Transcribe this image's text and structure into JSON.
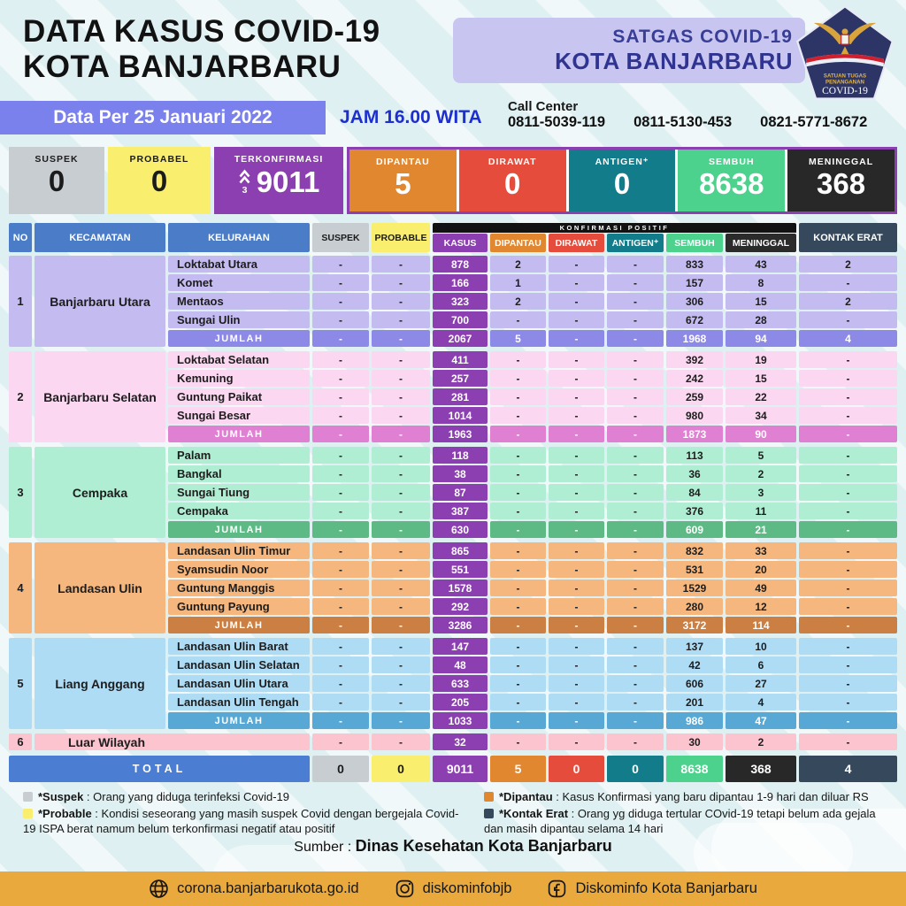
{
  "page": {
    "title_line1": "DATA KASUS COVID-19",
    "title_line2": "KOTA BANJARBARU"
  },
  "satgas": {
    "line1": "SATGAS COVID-19",
    "line2": "KOTA BANJARBARU",
    "badge_line1": "SATUAN TUGAS",
    "badge_line2": "PENANGANAN",
    "badge_line3": "COVID-19"
  },
  "info_bar": {
    "date": "Data Per 25 Januari 2022",
    "time": "JAM 16.00 WITA",
    "call_center_label": "Call Center",
    "phones": [
      "0811-5039-119",
      "0811-5130-453",
      "0821-5771-8672"
    ]
  },
  "summary_cards": {
    "standalone": [
      {
        "label": "SUSPEK",
        "value": "0",
        "bg": "#c8cdd1",
        "fg": "#1b1b1b"
      },
      {
        "label": "PROBABEL",
        "value": "0",
        "bg": "#f9ee6e",
        "fg": "#1b1b1b"
      },
      {
        "label": "TERKONFIRMASI",
        "value": "9011",
        "delta": "3",
        "bg": "#8c3fb0",
        "fg": "#ffffff"
      }
    ],
    "grouped": [
      {
        "label": "DIPANTAU",
        "value": "5",
        "bg": "#e0872f",
        "fg": "#ffffff"
      },
      {
        "label": "DIRAWAT",
        "value": "0",
        "bg": "#e64c3c",
        "fg": "#ffffff"
      },
      {
        "label": "ANTIGEN⁺",
        "value": "0",
        "bg": "#137c8b",
        "fg": "#ffffff"
      },
      {
        "label": "SEMBUH",
        "value": "8638",
        "bg": "#4dd28e",
        "fg": "#ffffff"
      },
      {
        "label": "MENINGGAL",
        "value": "368",
        "bg": "#282828",
        "fg": "#ffffff"
      }
    ],
    "group_border": "#8c3fb0"
  },
  "table": {
    "corner_headers": [
      "NO",
      "KECAMATAN",
      "KELURAHAN"
    ],
    "corner_bg": "#4a7cc8",
    "corner_fg": "#ffffff",
    "left_headers": [
      {
        "label": "SUSPEK",
        "bg": "#c8cdd1",
        "fg": "#1b1b1b"
      },
      {
        "label": "PROBABLE",
        "bg": "#f9ee6e",
        "fg": "#1b1b1b"
      }
    ],
    "konfirmasi_label": "KONFIRMASI POSITIF",
    "konfirmasi_headers": [
      {
        "label": "KASUS",
        "bg": "#8c3fb0",
        "fg": "#ffffff"
      },
      {
        "label": "DIPANTAU",
        "bg": "#e0872f",
        "fg": "#ffffff"
      },
      {
        "label": "DIRAWAT",
        "bg": "#e64c3c",
        "fg": "#ffffff"
      },
      {
        "label": "ANTIGEN⁺",
        "bg": "#137c8b",
        "fg": "#ffffff"
      },
      {
        "label": "SEMBUH",
        "bg": "#4dd28e",
        "fg": "#ffffff"
      },
      {
        "label": "MENINGGAL",
        "bg": "#2b2b2b",
        "fg": "#ffffff"
      }
    ],
    "kontak_header": {
      "label": "KONTAK ERAT",
      "bg": "#36495c",
      "fg": "#ffffff"
    },
    "kasus_color": "#8c3fb0",
    "groups": [
      {
        "no": "1",
        "kecamatan": "Banjarbaru Utara",
        "light": "#c4bbf0",
        "dark": "#8d89e6",
        "rows": [
          {
            "kelurahan": "Loktabat Utara",
            "values": [
              "-",
              "-",
              "878",
              "2",
              "-",
              "-",
              "833",
              "43",
              "2"
            ]
          },
          {
            "kelurahan": "Komet",
            "values": [
              "-",
              "-",
              "166",
              "1",
              "-",
              "-",
              "157",
              "8",
              "-"
            ]
          },
          {
            "kelurahan": "Mentaos",
            "values": [
              "-",
              "-",
              "323",
              "2",
              "-",
              "-",
              "306",
              "15",
              "2"
            ]
          },
          {
            "kelurahan": "Sungai Ulin",
            "values": [
              "-",
              "-",
              "700",
              "-",
              "-",
              "-",
              "672",
              "28",
              "-"
            ]
          }
        ],
        "jumlah": {
          "label": "JUMLAH",
          "values": [
            "-",
            "-",
            "2067",
            "5",
            "-",
            "-",
            "1968",
            "94",
            "4"
          ]
        }
      },
      {
        "no": "2",
        "kecamatan": "Banjarbaru Selatan",
        "light": "#fbd7f1",
        "dark": "#e080d2",
        "rows": [
          {
            "kelurahan": "Loktabat Selatan",
            "values": [
              "-",
              "-",
              "411",
              "-",
              "-",
              "-",
              "392",
              "19",
              "-"
            ]
          },
          {
            "kelurahan": "Kemuning",
            "values": [
              "-",
              "-",
              "257",
              "-",
              "-",
              "-",
              "242",
              "15",
              "-"
            ]
          },
          {
            "kelurahan": "Guntung Paikat",
            "values": [
              "-",
              "-",
              "281",
              "-",
              "-",
              "-",
              "259",
              "22",
              "-"
            ]
          },
          {
            "kelurahan": "Sungai Besar",
            "values": [
              "-",
              "-",
              "1014",
              "-",
              "-",
              "-",
              "980",
              "34",
              "-"
            ]
          }
        ],
        "jumlah": {
          "label": "JUMLAH",
          "values": [
            "-",
            "-",
            "1963",
            "-",
            "-",
            "-",
            "1873",
            "90",
            "-"
          ]
        }
      },
      {
        "no": "3",
        "kecamatan": "Cempaka",
        "light": "#b0eed3",
        "dark": "#5dba85",
        "rows": [
          {
            "kelurahan": "Palam",
            "values": [
              "-",
              "-",
              "118",
              "-",
              "-",
              "-",
              "113",
              "5",
              "-"
            ]
          },
          {
            "kelurahan": "Bangkal",
            "values": [
              "-",
              "-",
              "38",
              "-",
              "-",
              "-",
              "36",
              "2",
              "-"
            ]
          },
          {
            "kelurahan": "Sungai Tiung",
            "values": [
              "-",
              "-",
              "87",
              "-",
              "-",
              "-",
              "84",
              "3",
              "-"
            ]
          },
          {
            "kelurahan": "Cempaka",
            "values": [
              "-",
              "-",
              "387",
              "-",
              "-",
              "-",
              "376",
              "11",
              "-"
            ]
          }
        ],
        "jumlah": {
          "label": "JUMLAH",
          "values": [
            "-",
            "-",
            "630",
            "-",
            "-",
            "-",
            "609",
            "21",
            "-"
          ]
        }
      },
      {
        "no": "4",
        "kecamatan": "Landasan Ulin",
        "light": "#f6b77e",
        "dark": "#cb7f42",
        "rows": [
          {
            "kelurahan": "Landasan Ulin Timur",
            "values": [
              "-",
              "-",
              "865",
              "-",
              "-",
              "-",
              "832",
              "33",
              "-"
            ]
          },
          {
            "kelurahan": "Syamsudin Noor",
            "values": [
              "-",
              "-",
              "551",
              "-",
              "-",
              "-",
              "531",
              "20",
              "-"
            ]
          },
          {
            "kelurahan": "Guntung Manggis",
            "values": [
              "-",
              "-",
              "1578",
              "-",
              "-",
              "-",
              "1529",
              "49",
              "-"
            ]
          },
          {
            "kelurahan": "Guntung Payung",
            "values": [
              "-",
              "-",
              "292",
              "-",
              "-",
              "-",
              "280",
              "12",
              "-"
            ]
          }
        ],
        "jumlah": {
          "label": "JUMLAH",
          "values": [
            "-",
            "-",
            "3286",
            "-",
            "-",
            "-",
            "3172",
            "114",
            "-"
          ]
        }
      },
      {
        "no": "5",
        "kecamatan": "Liang Anggang",
        "light": "#aedcf5",
        "dark": "#58a8d5",
        "rows": [
          {
            "kelurahan": "Landasan Ulin Barat",
            "values": [
              "-",
              "-",
              "147",
              "-",
              "-",
              "-",
              "137",
              "10",
              "-"
            ]
          },
          {
            "kelurahan": "Landasan Ulin Selatan",
            "values": [
              "-",
              "-",
              "48",
              "-",
              "-",
              "-",
              "42",
              "6",
              "-"
            ]
          },
          {
            "kelurahan": "Landasan Ulin Utara",
            "values": [
              "-",
              "-",
              "633",
              "-",
              "-",
              "-",
              "606",
              "27",
              "-"
            ]
          },
          {
            "kelurahan": "Landasan Ulin Tengah",
            "values": [
              "-",
              "-",
              "205",
              "-",
              "-",
              "-",
              "201",
              "4",
              "-"
            ]
          }
        ],
        "jumlah": {
          "label": "JUMLAH",
          "values": [
            "-",
            "-",
            "1033",
            "-",
            "-",
            "-",
            "986",
            "47",
            "-"
          ]
        }
      }
    ],
    "luar_wilayah": {
      "no": "6",
      "name": "Luar Wilayah",
      "light": "#fbc4cf",
      "values": [
        "-",
        "-",
        "32",
        "-",
        "-",
        "-",
        "30",
        "2",
        "-"
      ]
    },
    "total": {
      "label": "TOTAL",
      "bar_bg": "#4b7ed3",
      "cells": [
        {
          "value": "0",
          "bg": "#c8cdd1",
          "fg": "#1b1b1b"
        },
        {
          "value": "0",
          "bg": "#f9ee6e",
          "fg": "#1b1b1b"
        },
        {
          "value": "9011",
          "bg": "#8c3fb0",
          "fg": "#ffffff"
        },
        {
          "value": "5",
          "bg": "#e0872f",
          "fg": "#ffffff"
        },
        {
          "value": "0",
          "bg": "#e64c3c",
          "fg": "#ffffff"
        },
        {
          "value": "0",
          "bg": "#137c8b",
          "fg": "#ffffff"
        },
        {
          "value": "8638",
          "bg": "#4dd28e",
          "fg": "#ffffff"
        },
        {
          "value": "368",
          "bg": "#282828",
          "fg": "#ffffff"
        },
        {
          "value": "4",
          "bg": "#36495c",
          "fg": "#ffffff"
        }
      ]
    }
  },
  "legend": {
    "left": [
      {
        "term": "*Suspek",
        "desc": "Orang yang diduga terinfeksi Covid-19",
        "color": "#c8cdd1"
      },
      {
        "term": "*Probable",
        "desc": "Kondisi seseorang yang masih suspek Covid dengan bergejala Covid-19 ISPA berat namum belum terkonfirmasi negatif atau positif",
        "color": "#f9ee6e"
      }
    ],
    "right": [
      {
        "term": "*Dipantau",
        "desc": "Kasus Konfirmasi yang baru dipantau 1-9 hari dan diluar RS",
        "color": "#e0872f"
      },
      {
        "term": "*Kontak Erat",
        "desc": "Orang yg diduga tertular COvid-19 tetapi belum ada gejala dan masih dipantau selama 14 hari",
        "color": "#36495c"
      }
    ]
  },
  "source": {
    "label": "Sumber :",
    "value": "Dinas Kesehatan Kota Banjarbaru"
  },
  "footer": {
    "bg": "#e9a93c",
    "items": [
      {
        "icon": "globe-icon",
        "text": "corona.banjarbarukota.go.id"
      },
      {
        "icon": "instagram-icon",
        "text": "diskominfobjb"
      },
      {
        "icon": "facebook-icon",
        "text": "Diskominfo Kota Banjarbaru"
      }
    ]
  }
}
